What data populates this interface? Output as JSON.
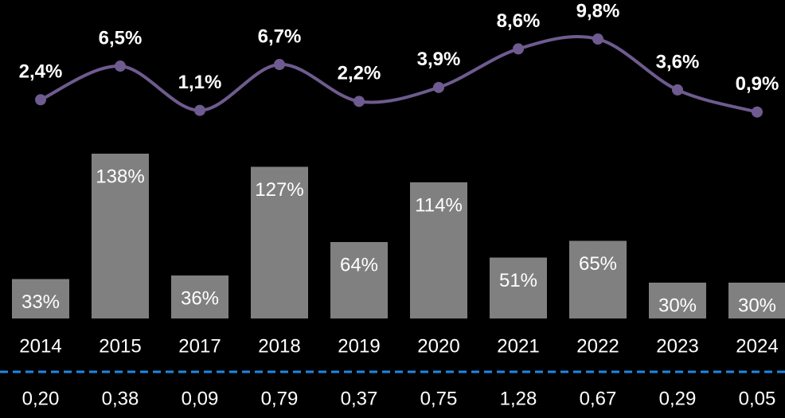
{
  "chart_data": {
    "type": "bar_line",
    "categories": [
      "2014",
      "2015",
      "2017",
      "2018",
      "2019",
      "2020",
      "2021",
      "2022",
      "2023",
      "2024"
    ],
    "ylim": [
      0,
      200
    ],
    "y2lim": [
      0,
      10
    ],
    "series": [
      {
        "type": "bar",
        "color": "#808080",
        "values": [
          33,
          138,
          36,
          127,
          64,
          114,
          51,
          65,
          30,
          30
        ],
        "value_labels": [
          "33%",
          "138%",
          "36%",
          "127%",
          "64%",
          "114%",
          "51%",
          "65%",
          "30%",
          "30%"
        ]
      },
      {
        "type": "line",
        "axis": "y2",
        "color": "#6e5b8f",
        "values": [
          2.4,
          6.5,
          1.1,
          6.7,
          2.2,
          3.9,
          8.6,
          9.8,
          3.6,
          0.9
        ],
        "value_labels": [
          "2,4%",
          "6,5%",
          "1,1%",
          "6,7%",
          "2,2%",
          "3,9%",
          "8,6%",
          "9,8%",
          "3,6%",
          "0,9%"
        ]
      },
      {
        "type": "text_row",
        "values": [
          0.2,
          0.38,
          0.09,
          0.79,
          0.37,
          0.75,
          1.28,
          0.67,
          0.29,
          0.05
        ],
        "value_labels": [
          "0,20",
          "0,38",
          "0,09",
          "0,79",
          "0,37",
          "0,75",
          "1,28",
          "0,67",
          "0,29",
          "0,05"
        ]
      }
    ]
  }
}
